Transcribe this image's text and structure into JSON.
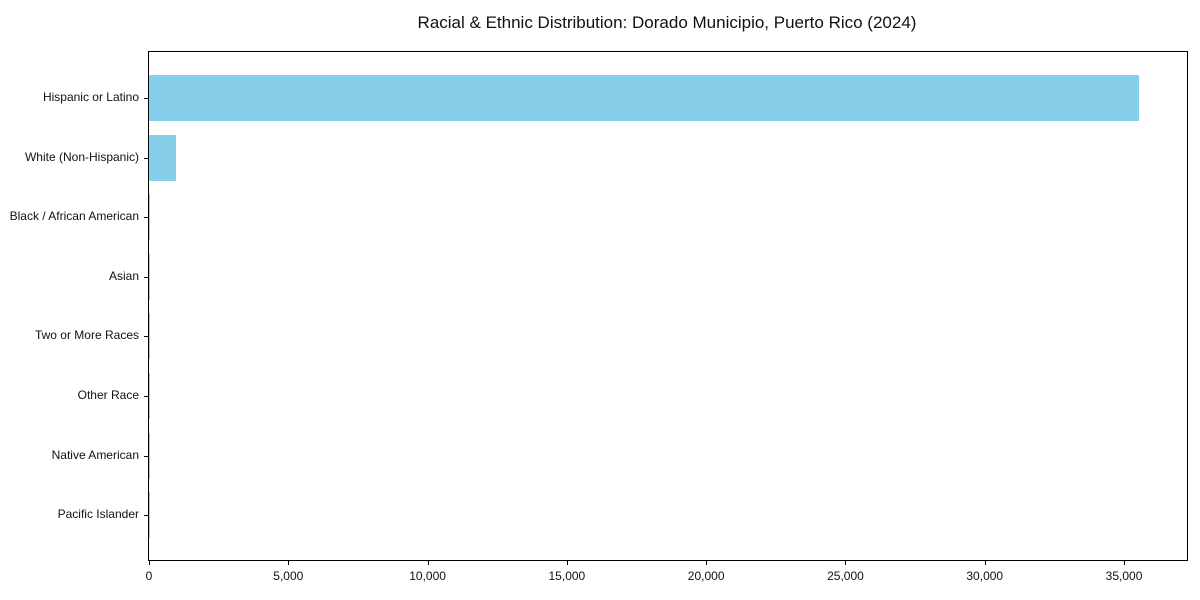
{
  "chart_data": {
    "type": "bar",
    "orientation": "horizontal",
    "title": "Racial & Ethnic Distribution: Dorado Municipio, Puerto Rico (2024)",
    "categories": [
      "Hispanic or Latino",
      "White (Non-Hispanic)",
      "Black / African American",
      "Asian",
      "Two or More Races",
      "Other Race",
      "Native American",
      "Pacific Islander"
    ],
    "values": [
      35530,
      980,
      50,
      25,
      40,
      30,
      15,
      5
    ],
    "xlabel": "",
    "ylabel": "",
    "xlim": [
      0,
      37260
    ],
    "xticks": [
      0,
      5000,
      10000,
      15000,
      20000,
      25000,
      30000,
      35000
    ],
    "xtick_labels": [
      "0",
      "5,000",
      "10,000",
      "15,000",
      "20,000",
      "25,000",
      "30,000",
      "35,000"
    ],
    "bar_color": "#87CEEB",
    "axis_color": "#000000",
    "grid": false,
    "legend": null
  }
}
